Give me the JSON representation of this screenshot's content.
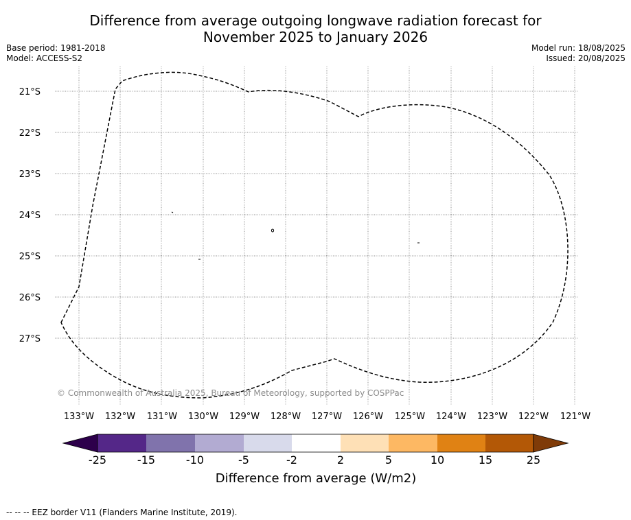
{
  "title_line1": "Difference from average outgoing longwave radiation forecast for",
  "title_line2": "November 2025 to January 2026",
  "base_period": "Base period: 1981-2018",
  "model": "Model: ACCESS-S2",
  "model_run": "Model run: 18/08/2025",
  "issued": "Issued: 20/08/2025",
  "copyright": "© Commonwealth of Australia 2025, Bureau of Meteorology, supported by COSPPac",
  "lat_labels": [
    "21°S",
    "22°S",
    "23°S",
    "24°S",
    "25°S",
    "26°S",
    "27°S"
  ],
  "lon_labels": [
    "133°W",
    "132°W",
    "131°W",
    "130°W",
    "129°W",
    "128°W",
    "127°W",
    "126°W",
    "125°W",
    "124°W",
    "123°W",
    "122°W",
    "121°W"
  ],
  "colorbar": {
    "label": "Difference from average (W/m2)",
    "ticks": [
      "-25",
      "-15",
      "-10",
      "-5",
      "-2",
      "2",
      "5",
      "10",
      "15",
      "25"
    ],
    "colors": [
      "#2d004b",
      "#542788",
      "#8073ac",
      "#b2abd2",
      "#d8daeb",
      "#ffffff",
      "#fee0b6",
      "#fdb863",
      "#e08214",
      "#b35806",
      "#7f3b08"
    ]
  },
  "footer": "--  --  -- EEZ border V11 (Flanders Marine Institute, 2019)."
}
